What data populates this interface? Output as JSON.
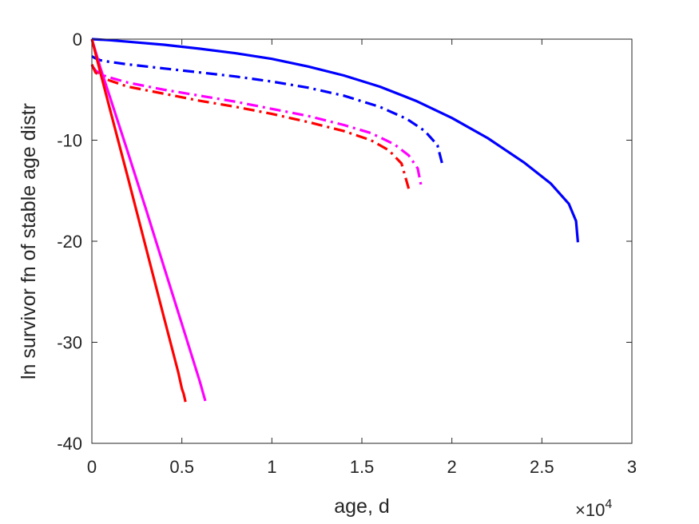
{
  "chart_data": {
    "type": "line",
    "title": "",
    "xlabel": "age, d",
    "ylabel": "ln survivor fn of stable age distr",
    "x_exponent_label": {
      "base": "×10",
      "exp": "4"
    },
    "x_scale": 10000,
    "xlim": [
      0,
      30000
    ],
    "ylim": [
      -40,
      0
    ],
    "x_ticks": [
      0,
      5000,
      10000,
      15000,
      20000,
      25000,
      30000
    ],
    "x_tick_labels": [
      "0",
      "0.5",
      "1",
      "1.5",
      "2",
      "2.5",
      "3"
    ],
    "y_ticks": [
      0,
      -10,
      -20,
      -30,
      -40
    ],
    "y_tick_labels": [
      "0",
      "-10",
      "-20",
      "-30",
      "-40"
    ],
    "grid": false,
    "legend": "none",
    "series": [
      {
        "color": "#0000ff",
        "style": "solid",
        "x": [
          0,
          1000,
          2000,
          4000,
          6000,
          8000,
          10000,
          12000,
          14000,
          16000,
          18000,
          20000,
          22000,
          24000,
          25500,
          26500,
          26900,
          27000
        ],
        "y": [
          0,
          -0.1,
          -0.25,
          -0.55,
          -0.95,
          -1.4,
          -1.95,
          -2.7,
          -3.6,
          -4.7,
          -6.1,
          -7.8,
          -9.8,
          -12.2,
          -14.3,
          -16.3,
          -18.0,
          -20.1
        ]
      },
      {
        "color": "#0000ff",
        "style": "dashdot",
        "x": [
          0,
          200,
          500,
          1000,
          2000,
          4000,
          6000,
          8000,
          10000,
          12000,
          14000,
          16000,
          17500,
          18500,
          19200,
          19500
        ],
        "y": [
          -1.7,
          -1.9,
          -2.1,
          -2.25,
          -2.5,
          -2.9,
          -3.3,
          -3.7,
          -4.2,
          -4.8,
          -5.6,
          -6.7,
          -7.9,
          -9.1,
          -10.5,
          -12.6
        ]
      },
      {
        "color": "#ff00ff",
        "style": "dashdot",
        "x": [
          0,
          200,
          500,
          1000,
          2000,
          4000,
          6000,
          8000,
          10000,
          12000,
          14000,
          15500,
          16800,
          17600,
          18100,
          18300
        ],
        "y": [
          -2.6,
          -3.1,
          -3.5,
          -3.8,
          -4.3,
          -5.0,
          -5.6,
          -6.2,
          -6.9,
          -7.6,
          -8.5,
          -9.3,
          -10.4,
          -11.5,
          -12.8,
          -14.6
        ]
      },
      {
        "color": "#ff0000",
        "style": "dashdot",
        "x": [
          0,
          200,
          500,
          1000,
          2000,
          4000,
          6000,
          8000,
          10000,
          12000,
          14000,
          15500,
          16500,
          17200,
          17600
        ],
        "y": [
          -2.5,
          -3.3,
          -3.7,
          -4.1,
          -4.7,
          -5.4,
          -6.1,
          -6.7,
          -7.4,
          -8.2,
          -9.1,
          -10.0,
          -11.0,
          -12.3,
          -14.8
        ]
      },
      {
        "color": "#ff00ff",
        "style": "solid",
        "x": [
          0,
          500,
          1000,
          2000,
          3000,
          4000,
          5000,
          6000,
          6300
        ],
        "y": [
          0,
          -3.0,
          -5.7,
          -11.2,
          -16.8,
          -22.5,
          -28.2,
          -33.9,
          -35.8
        ]
      },
      {
        "color": "#ff0000",
        "style": "solid",
        "x": [
          0,
          500,
          1000,
          2000,
          3000,
          4000,
          4800,
          5000,
          5100,
          5200
        ],
        "y": [
          0,
          -3.5,
          -6.9,
          -13.7,
          -20.6,
          -27.5,
          -33.0,
          -34.6,
          -35.1,
          -35.9
        ]
      }
    ]
  }
}
